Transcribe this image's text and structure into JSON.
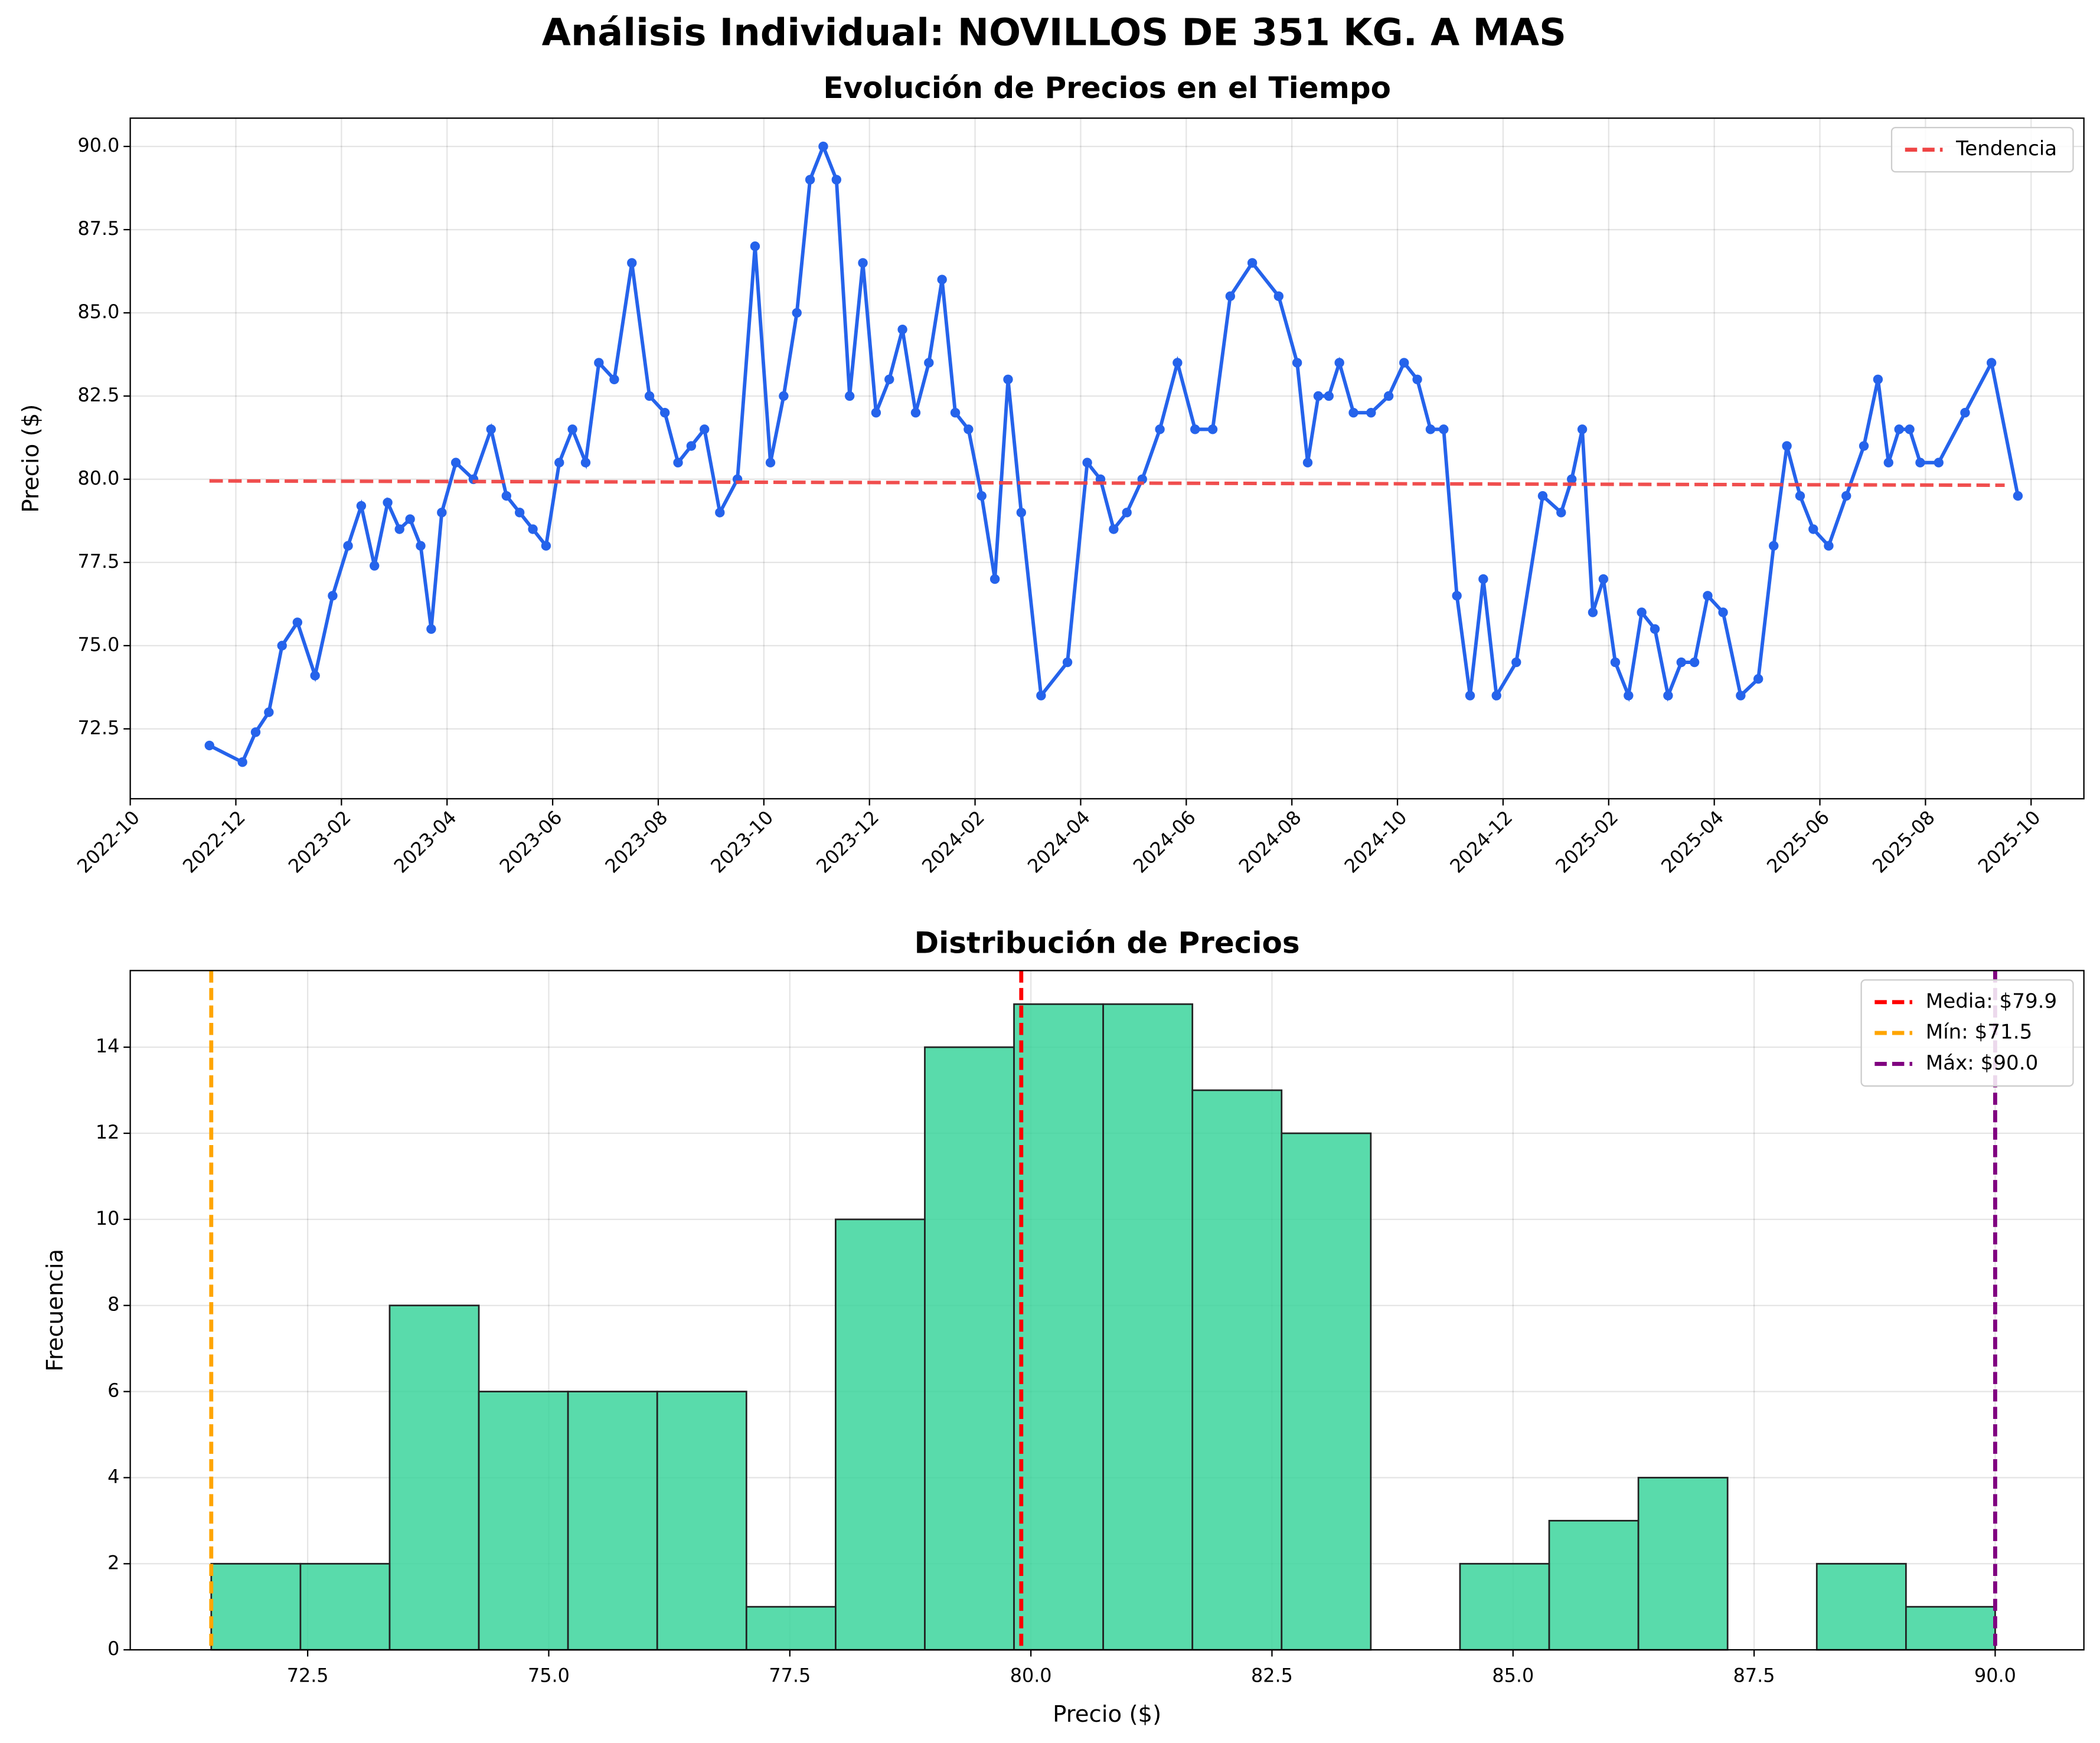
{
  "title": "Análisis Individual: NOVILLOS DE 351 KG. A MAS",
  "chart_data": [
    {
      "type": "line",
      "title": "Evolución de Precios en el Tiempo",
      "ylabel": "Precio ($)",
      "color": "#2563eb",
      "x": [
        "2022-11",
        "2022-12",
        "2022-12",
        "2022-12",
        "2022-12",
        "2023-01",
        "2023-01",
        "2023-01",
        "2023-02",
        "2023-02",
        "2023-02",
        "2023-02",
        "2023-03",
        "2023-03",
        "2023-03",
        "2023-03",
        "2023-03",
        "2023-04",
        "2023-04",
        "2023-04",
        "2023-05",
        "2023-05",
        "2023-05",
        "2023-05",
        "2023-06",
        "2023-06",
        "2023-06",
        "2023-06",
        "2023-07",
        "2023-07",
        "2023-07",
        "2023-08",
        "2023-08",
        "2023-08",
        "2023-08",
        "2023-09",
        "2023-09",
        "2023-09",
        "2023-10",
        "2023-10",
        "2023-10",
        "2023-10",
        "2023-11",
        "2023-11",
        "2023-11",
        "2023-11",
        "2023-12",
        "2023-12",
        "2023-12",
        "2023-12",
        "2024-01",
        "2024-01",
        "2024-01",
        "2024-01",
        "2024-02",
        "2024-02",
        "2024-02",
        "2024-02",
        "2024-03",
        "2024-03",
        "2024-04",
        "2024-04",
        "2024-04",
        "2024-04",
        "2024-05",
        "2024-05",
        "2024-05",
        "2024-06",
        "2024-06",
        "2024-06",
        "2024-07",
        "2024-07",
        "2024-08",
        "2024-08",
        "2024-08",
        "2024-08",
        "2024-08",
        "2024-09",
        "2024-09",
        "2024-09",
        "2024-10",
        "2024-10",
        "2024-10",
        "2024-10",
        "2024-11",
        "2024-11",
        "2024-11",
        "2024-11",
        "2024-12",
        "2024-12",
        "2025-01",
        "2025-01",
        "2025-01",
        "2025-01",
        "2025-01",
        "2025-02",
        "2025-02",
        "2025-02",
        "2025-02",
        "2025-03",
        "2025-03",
        "2025-03",
        "2025-03",
        "2025-04",
        "2025-04",
        "2025-04",
        "2025-05",
        "2025-05",
        "2025-05",
        "2025-05",
        "2025-06",
        "2025-06",
        "2025-06",
        "2025-07",
        "2025-07",
        "2025-07",
        "2025-07",
        "2025-07",
        "2025-08",
        "2025-08",
        "2025-09",
        "2025-09"
      ],
      "values": [
        72.0,
        71.5,
        72.4,
        73.0,
        75.0,
        75.7,
        74.1,
        76.5,
        78.0,
        79.2,
        77.4,
        79.3,
        78.5,
        78.8,
        78.0,
        75.5,
        79.0,
        80.5,
        80.0,
        81.5,
        79.5,
        79.0,
        78.5,
        78.0,
        80.5,
        81.5,
        80.5,
        83.5,
        83.0,
        86.5,
        82.5,
        82.0,
        80.5,
        81.0,
        81.5,
        79.0,
        80.0,
        87.0,
        80.5,
        82.5,
        85.0,
        89.0,
        90.0,
        89.0,
        82.5,
        86.5,
        82.0,
        83.0,
        84.5,
        82.0,
        83.5,
        86.0,
        82.0,
        81.5,
        79.5,
        77.0,
        83.0,
        79.0,
        73.5,
        74.5,
        80.5,
        80.0,
        78.5,
        79.0,
        80.0,
        81.5,
        83.5,
        81.5,
        81.5,
        85.5,
        86.5,
        85.5,
        83.5,
        80.5,
        82.5,
        82.5,
        83.5,
        82.0,
        82.0,
        82.5,
        83.5,
        83.0,
        81.5,
        81.5,
        76.5,
        73.5,
        77.0,
        73.5,
        74.5,
        79.5,
        79.0,
        80.0,
        81.5,
        76.0,
        77.0,
        74.5,
        73.5,
        76.0,
        75.5,
        73.5,
        74.5,
        74.5,
        76.5,
        76.0,
        73.5,
        74.0,
        78.0,
        81.0,
        79.5,
        78.5,
        78.0,
        79.5,
        81.0,
        83.0,
        80.5,
        81.5,
        81.5,
        80.5,
        80.5,
        82.0,
        83.5,
        79.5
      ],
      "series": [
        {
          "name": "Tendencia",
          "color": "#ef4444",
          "x": [
            "2022-11",
            "2025-09"
          ],
          "values": [
            79.95,
            79.82
          ]
        }
      ],
      "xlim": [
        "2022-10",
        "2025-11"
      ],
      "xticks": [
        "2022-10",
        "2022-12",
        "2023-02",
        "2023-04",
        "2023-06",
        "2023-08",
        "2023-10",
        "2023-12",
        "2024-02",
        "2024-04",
        "2024-06",
        "2024-08",
        "2024-10",
        "2024-12",
        "2025-02",
        "2025-04",
        "2025-06",
        "2025-08",
        "2025-10"
      ],
      "ylim": [
        70.4,
        90.85
      ],
      "yticks": [
        72.5,
        {
          "value": 75,
          "label": "75.0"
        },
        77.5,
        {
          "value": 80,
          "label": "80.0"
        },
        82.5,
        {
          "value": 85,
          "label": "85.0"
        },
        87.5,
        {
          "value": 90,
          "label": "90.0"
        }
      ],
      "grid": true,
      "legend": "upper right"
    },
    {
      "type": "histogram",
      "title": "Distribución de Precios",
      "xlabel": "Precio ($)",
      "ylabel": "Frecuencia",
      "color": "#34d399",
      "bins": [
        71.5,
        72.425,
        73.35,
        74.275,
        75.2,
        76.125,
        77.05,
        77.975,
        78.9,
        79.825,
        80.75,
        81.675,
        82.6,
        83.525,
        84.45,
        85.375,
        86.3,
        87.225,
        88.15,
        89.075,
        90.0
      ],
      "values": [
        2,
        2,
        8,
        6,
        6,
        6,
        1,
        10,
        14,
        15,
        15,
        13,
        12,
        0,
        2,
        3,
        4,
        0,
        2,
        1
      ],
      "vlines": [
        {
          "name": "Media: $79.9",
          "value": 79.9,
          "color": "#ff0000"
        },
        {
          "name": "Mín: $71.5",
          "value": 71.5,
          "color": "#ffa500"
        },
        {
          "name": "Máx: $90.0",
          "value": 90.0,
          "color": "#800080"
        }
      ],
      "xlim": [
        70.66,
        90.92
      ],
      "xticks": [
        72.5,
        {
          "value": 75,
          "label": "75.0"
        },
        77.5,
        {
          "value": 80,
          "label": "80.0"
        },
        82.5,
        {
          "value": 85,
          "label": "85.0"
        },
        87.5,
        {
          "value": 90,
          "label": "90.0"
        }
      ],
      "ylim": [
        0,
        15.78
      ],
      "yticks": [
        0,
        2,
        4,
        6,
        8,
        10,
        12,
        14
      ],
      "grid": true,
      "legend": "upper right"
    }
  ]
}
